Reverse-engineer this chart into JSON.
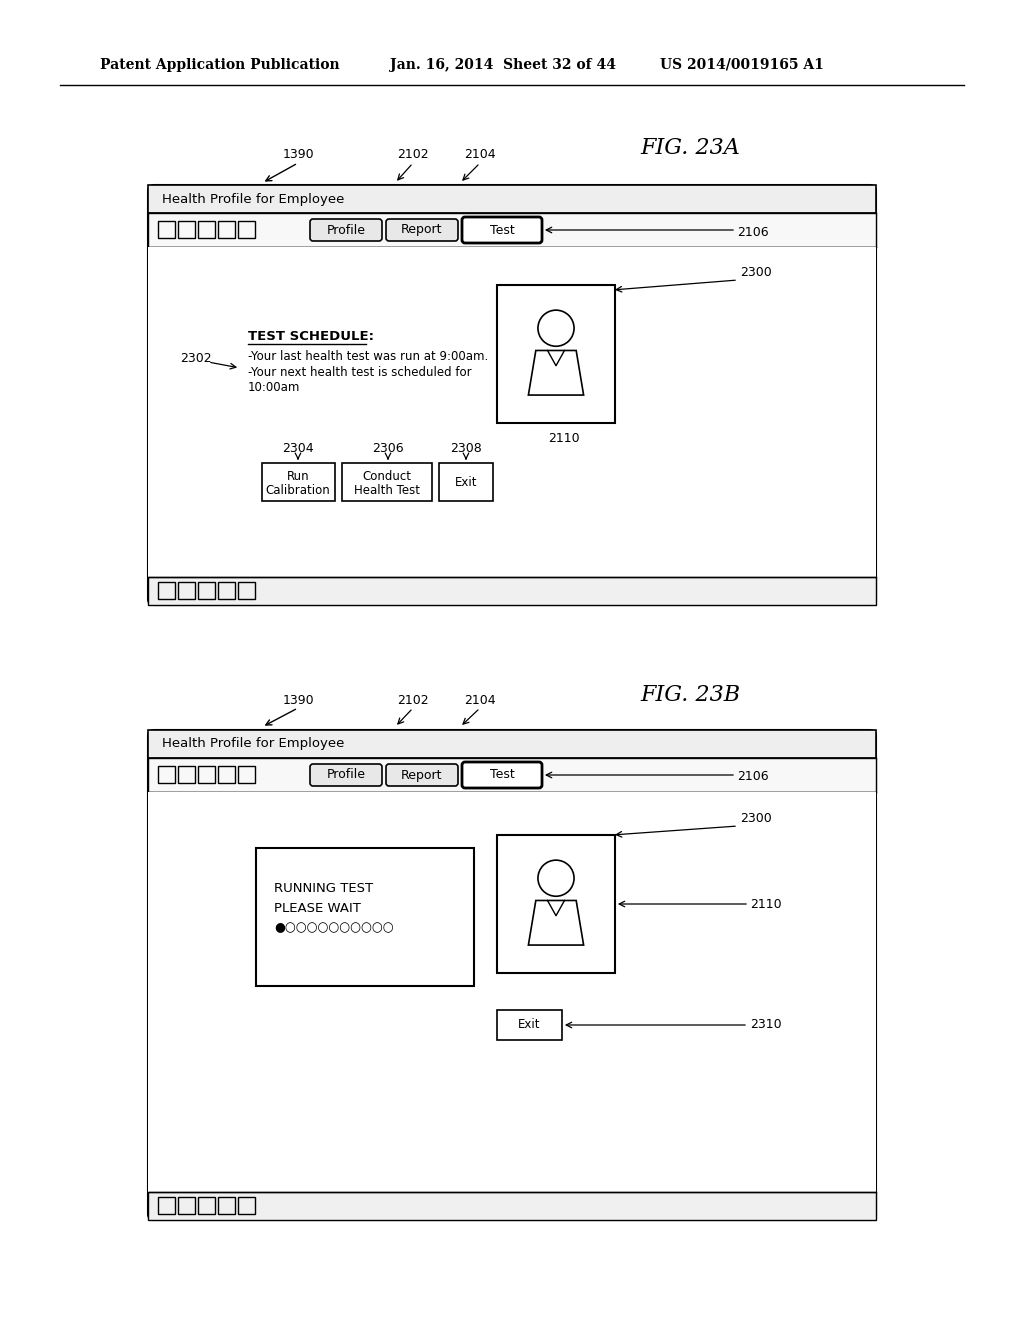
{
  "bg_color": "#ffffff",
  "header_left": "Patent Application Publication",
  "header_mid": "Jan. 16, 2014  Sheet 32 of 44",
  "header_right": "US 2014/0019165 A1",
  "fig23a_label": "FIG. 23A",
  "fig23b_label": "FIG. 23B",
  "label_1390a": "1390",
  "label_1390b": "1390",
  "label_2102a": "2102",
  "label_2104a": "2104",
  "label_2106a": "2106",
  "label_2102b": "2102",
  "label_2104b": "2104",
  "label_2106b": "2106",
  "label_2300a": "2300",
  "label_2300b": "2300",
  "label_2110a": "2110",
  "label_2110b": "2110",
  "label_2302": "2302",
  "label_2304": "2304",
  "label_2306": "2306",
  "label_2308": "2308",
  "label_2310": "2310",
  "health_profile_text": "Health Profile for Employee",
  "test_schedule_title": "TEST SCHEDULE:",
  "test_schedule_line1": "-Your last health test was run at 9:00am.",
  "test_schedule_line2": "-Your next health test is scheduled for",
  "test_schedule_line3": "10:00am",
  "running_test_line1": "RUNNING TEST",
  "running_test_line2": "PLEASE WAIT",
  "running_test_line3": "●○○○○○○○○○○",
  "tab_profile": "Profile",
  "tab_report": "Report",
  "tab_test": "Test",
  "btn_run_calibration_line1": "Run",
  "btn_run_calibration_line2": "Calibration",
  "btn_conduct_line1": "Conduct",
  "btn_conduct_line2": "Health Test",
  "btn_exit_a": "Exit",
  "btn_exit_b": "Exit"
}
